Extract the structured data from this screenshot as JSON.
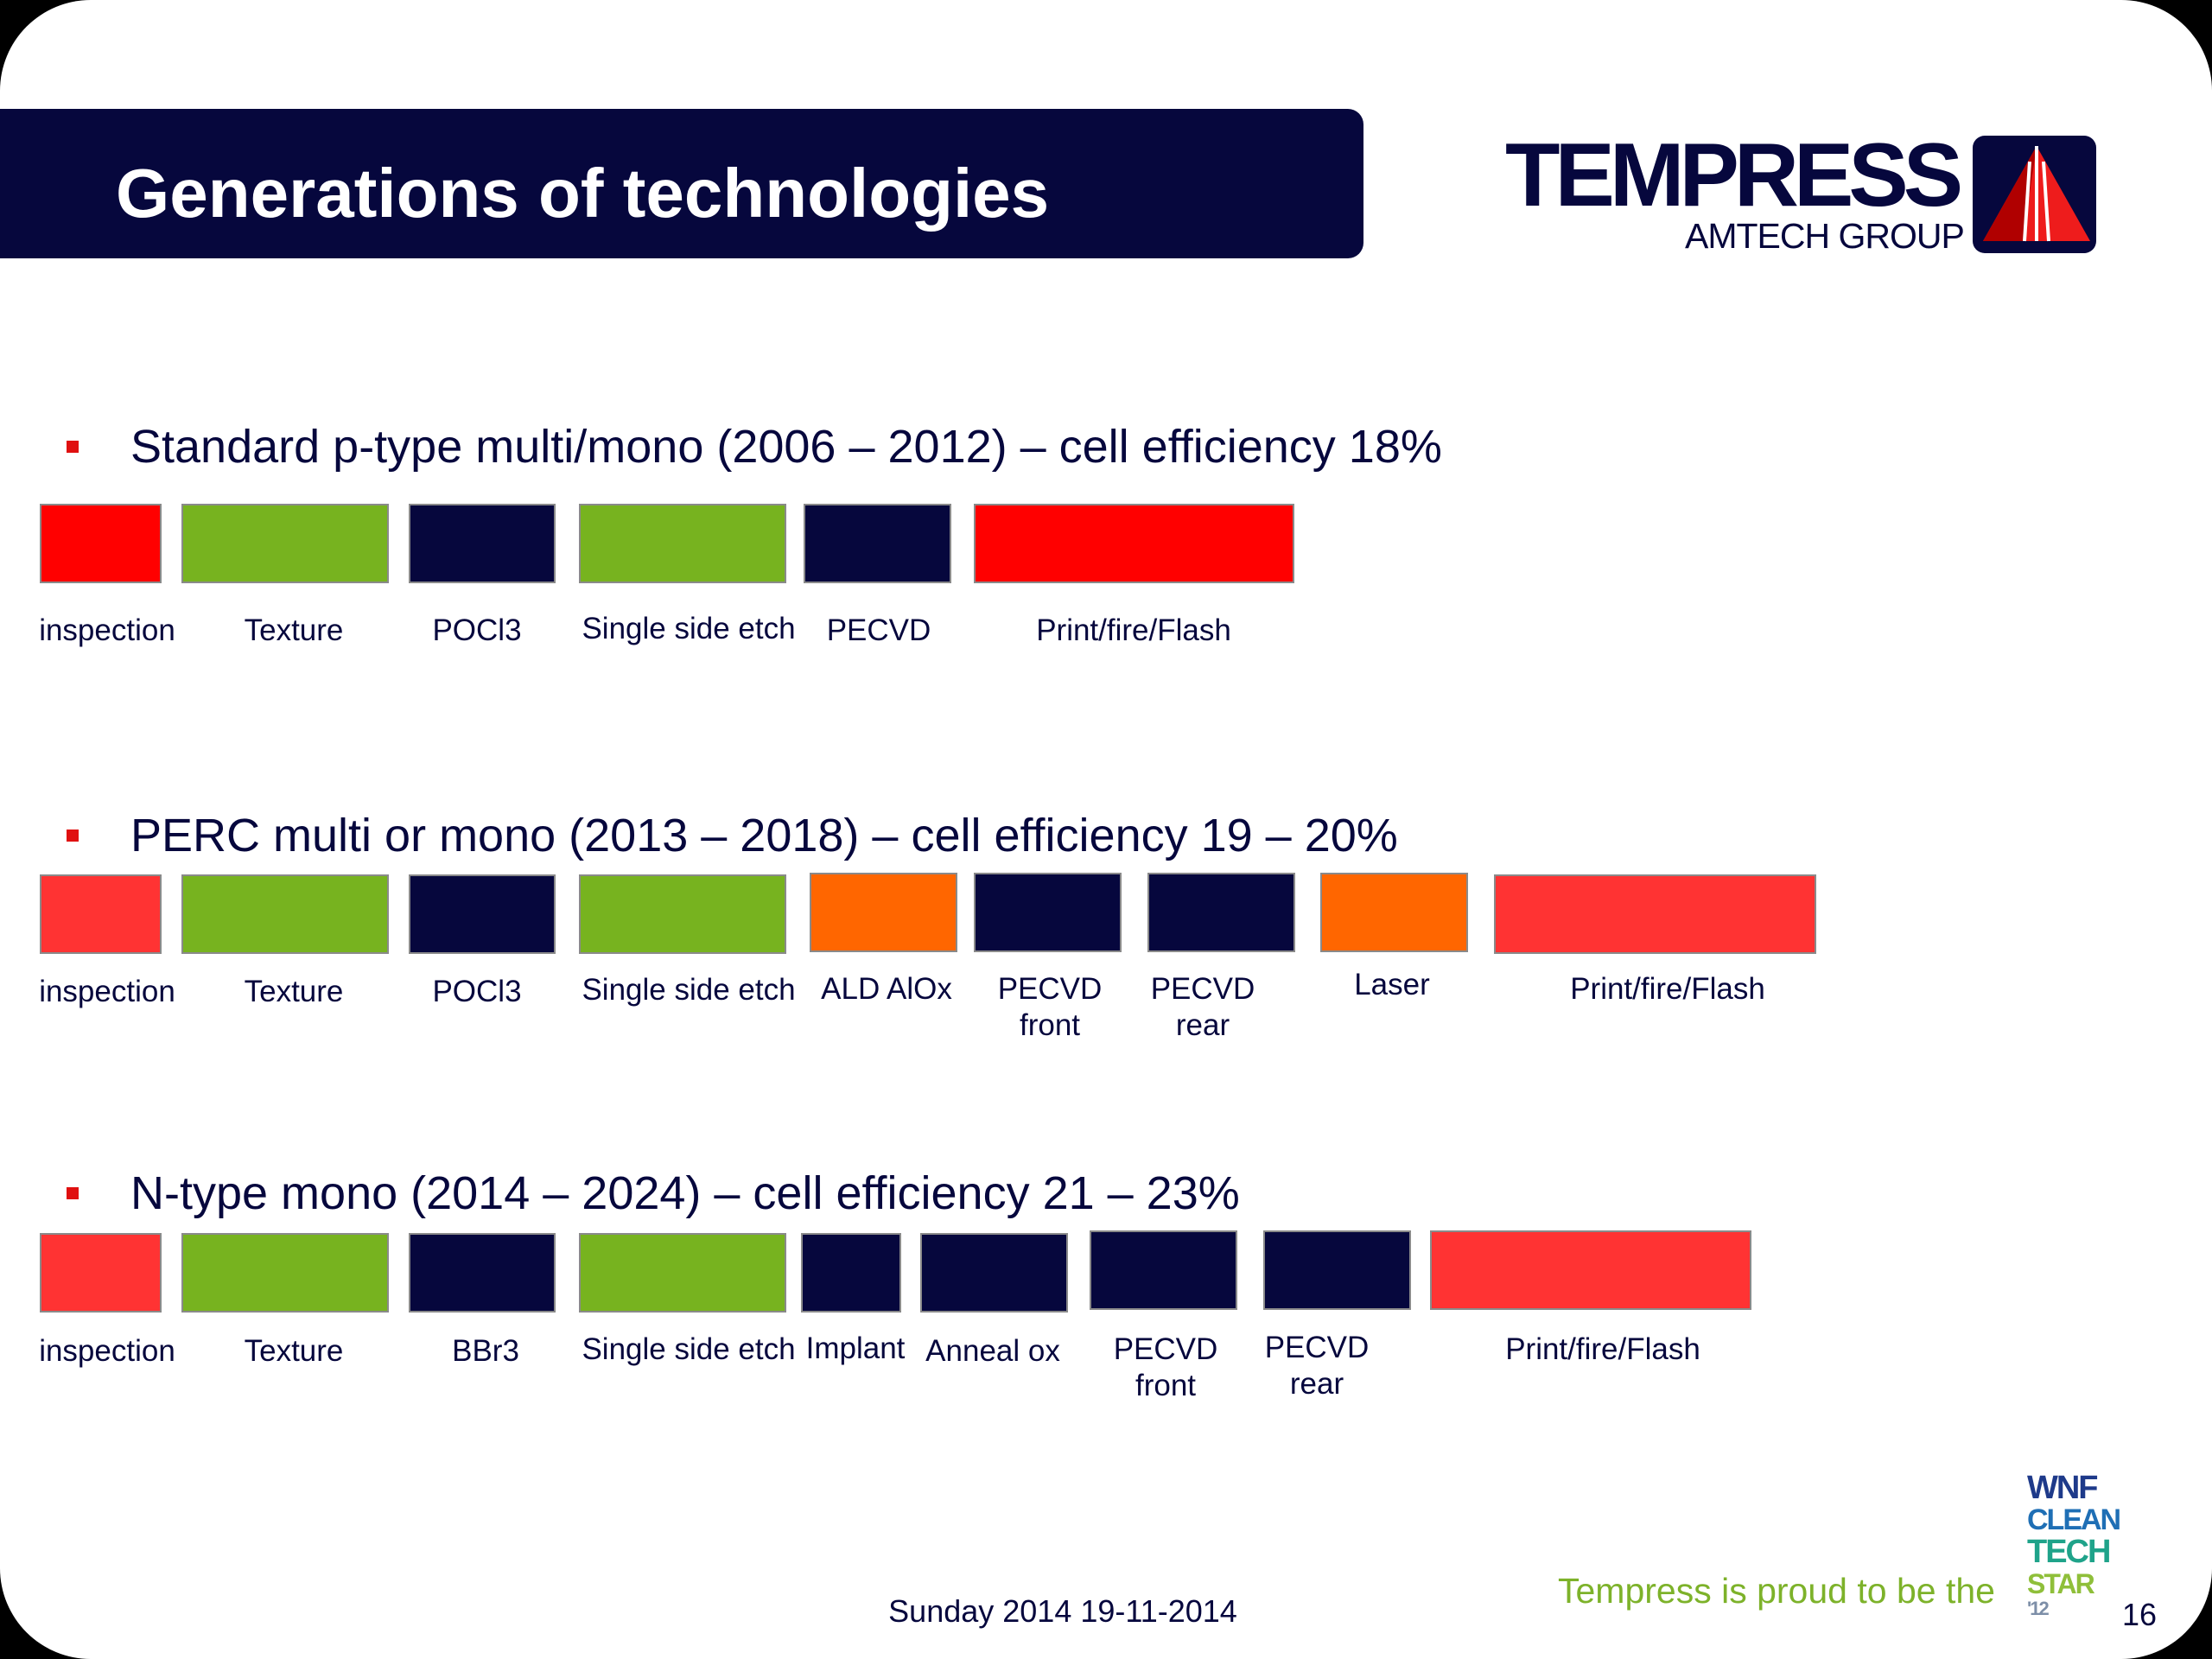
{
  "title": "Generations of technologies",
  "logo": {
    "name": "TEMPRESS",
    "group": "AMTECH GROUP"
  },
  "colors": {
    "navy": "#06073d",
    "red": "#ff0000",
    "light_red": "#ff3333",
    "green": "#77b31f",
    "orange": "#ff6600",
    "bullet": "#e01010"
  },
  "sections": [
    {
      "heading": "Standard p-type multi/mono (2006 – 2012) – cell efficiency 18%",
      "steps": [
        {
          "label": "inspection",
          "color": "#ff0000"
        },
        {
          "label": "Texture",
          "color": "#77b31f"
        },
        {
          "label": "POCl3",
          "color": "#06073d"
        },
        {
          "label": "Single side etch",
          "color": "#77b31f"
        },
        {
          "label": "PECVD",
          "color": "#06073d"
        },
        {
          "label": "Print/fire/Flash",
          "color": "#ff0000"
        }
      ]
    },
    {
      "heading": "PERC multi or mono (2013 – 2018) – cell efficiency 19 – 20%",
      "steps": [
        {
          "label": "inspection",
          "color": "#ff3333"
        },
        {
          "label": "Texture",
          "color": "#77b31f"
        },
        {
          "label": "POCl3",
          "color": "#06073d"
        },
        {
          "label": "Single side etch",
          "color": "#77b31f"
        },
        {
          "label": "ALD AlOx",
          "color": "#ff6600"
        },
        {
          "label": "PECVD front",
          "color": "#06073d"
        },
        {
          "label": "PECVD rear",
          "color": "#06073d"
        },
        {
          "label": "Laser",
          "color": "#ff6600"
        },
        {
          "label": "Print/fire/Flash",
          "color": "#ff3333"
        }
      ]
    },
    {
      "heading": "N-type mono (2014 – 2024) – cell efficiency 21 – 23%",
      "steps": [
        {
          "label": "inspection",
          "color": "#ff3333"
        },
        {
          "label": "Texture",
          "color": "#77b31f"
        },
        {
          "label": "BBr3",
          "color": "#06073d"
        },
        {
          "label": "Single side etch",
          "color": "#77b31f"
        },
        {
          "label": "Implant",
          "color": "#06073d"
        },
        {
          "label": "Anneal ox",
          "color": "#06073d"
        },
        {
          "label": "PECVD front",
          "color": "#06073d"
        },
        {
          "label": "PECVD rear",
          "color": "#06073d"
        },
        {
          "label": "Print/fire/Flash",
          "color": "#ff3333"
        }
      ]
    }
  ],
  "footer": {
    "date": "Sunday 2014 19-11-2014",
    "proud": "Tempress is proud to be the",
    "badge": [
      "WNF",
      "CLEAN",
      "TECH",
      "STAR",
      "'12"
    ],
    "page": "16"
  }
}
